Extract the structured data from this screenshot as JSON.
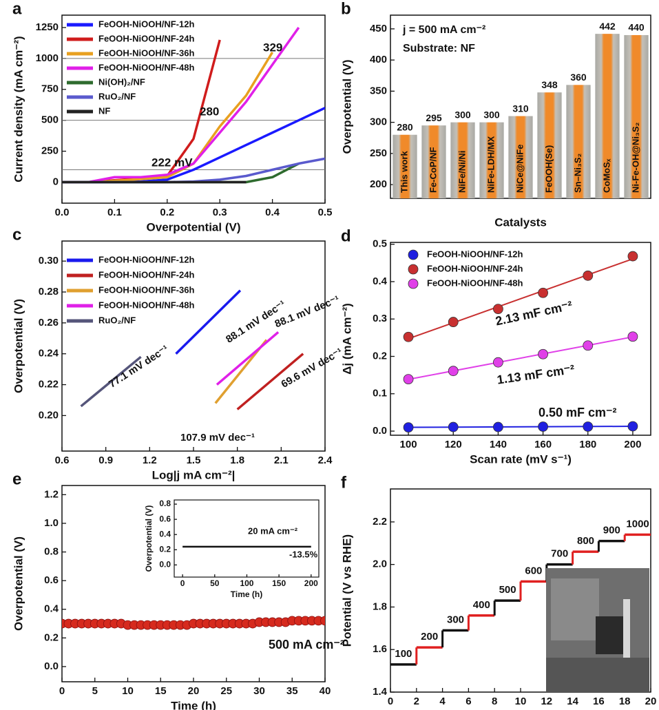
{
  "chart_data": [
    {
      "type": "line",
      "panel_label": "a",
      "xlabel": "Overpotential (V)",
      "ylabel": "Current density (mA cm⁻²)",
      "xlim": [
        0,
        0.5
      ],
      "ylim": [
        -170,
        1350
      ],
      "xticks": [
        {
          "value": 0,
          "label": "0.0"
        },
        0.1,
        0.2,
        0.3,
        0.4,
        0.5
      ],
      "yticks": [
        0,
        250,
        500,
        750,
        1000,
        1250
      ],
      "reference_lines": [
        100,
        500,
        1000
      ],
      "x": [
        0,
        0.05,
        0.1,
        0.15,
        0.2,
        0.25,
        0.3,
        0.35,
        0.4,
        0.45,
        0.5
      ],
      "series": [
        {
          "name": "FeOOH-NiOOH/NF-12h",
          "color": "#1a1aff",
          "values": [
            0,
            0,
            0,
            5,
            20,
            100,
            200,
            300,
            400,
            500,
            600
          ]
        },
        {
          "name": "FeOOH-NiOOH/NF-24h",
          "color": "#d01c1c",
          "values": [
            0,
            0,
            15,
            30,
            50,
            350,
            1150,
            null,
            null,
            null,
            null
          ]
        },
        {
          "name": "FeOOH-NiOOH/NF-36h",
          "color": "#e8a020",
          "values": [
            0,
            0,
            10,
            25,
            40,
            150,
            450,
            700,
            1050,
            null,
            null
          ]
        },
        {
          "name": "FeOOH-NiOOH/NF-48h",
          "color": "#e020e8",
          "values": [
            0,
            0,
            40,
            40,
            60,
            150,
            400,
            650,
            950,
            1250,
            null
          ]
        },
        {
          "name": "Ni(OH)₂/NF",
          "color": "#2e6b2e",
          "values": [
            0,
            0,
            0,
            0,
            0,
            0,
            0,
            0,
            40,
            150,
            null
          ]
        },
        {
          "name": "RuO₂/NF",
          "color": "#5a5acd",
          "values": [
            0,
            0,
            0,
            0,
            0,
            5,
            20,
            50,
            100,
            150,
            190
          ]
        },
        {
          "name": "NF",
          "color": "#222222",
          "values": [
            0,
            0,
            0,
            0,
            0,
            0,
            0,
            0,
            null,
            null,
            null
          ]
        }
      ],
      "annotations": [
        {
          "text": "222 mV",
          "color": "#c01818"
        },
        {
          "text": "280",
          "color": "#c01818"
        },
        {
          "text": "329",
          "color": "#c01818"
        }
      ]
    },
    {
      "type": "bar",
      "panel_label": "b",
      "xlabel": "Catalysts",
      "ylabel": "Overpotential (V)",
      "ylim": [
        178,
        472
      ],
      "yticks": [
        200,
        250,
        300,
        350,
        400,
        450
      ],
      "categories": [
        "This work",
        "Fe-CoP/NF",
        "NiFe/Ni/Ni",
        "NiFe-LDH/MX",
        "NiCe@NiFe",
        "FeOOH(Se)",
        "Sn–Ni₃S₂",
        "CoMoSₓ",
        "Ni-Fe-OH@Ni₃S₂"
      ],
      "values": [
        280,
        295,
        300,
        300,
        310,
        348,
        360,
        442,
        440
      ],
      "color": "#f08a2a",
      "annotations": [
        {
          "text": "j = 500 mA cm⁻²",
          "color": "#111111"
        },
        {
          "text": "Substrate: NF",
          "color": "#111111"
        }
      ]
    },
    {
      "type": "line",
      "panel_label": "c",
      "xlabel": "Log|j mA cm⁻²|",
      "ylabel": "Overpotential (V)",
      "xlim": [
        0.6,
        2.4
      ],
      "ylim": [
        0.177,
        0.313
      ],
      "xticks": [
        0.6,
        0.9,
        1.2,
        1.5,
        1.8,
        2.1,
        2.4
      ],
      "yticks": [
        {
          "value": 0.2,
          "label": "0.20"
        },
        0.22,
        0.24,
        0.26,
        0.28,
        {
          "value": 0.3,
          "label": "0.30"
        }
      ],
      "series": [
        {
          "name": "FeOOH-NiOOH/NF-12h",
          "color": "#1a1aee",
          "x": [
            1.38,
            1.82
          ],
          "values": [
            0.24,
            0.281
          ]
        },
        {
          "name": "FeOOH-NiOOH/NF-24h",
          "color": "#c02020",
          "x": [
            1.8,
            2.25
          ],
          "values": [
            0.204,
            0.24
          ]
        },
        {
          "name": "FeOOH-NiOOH/NF-36h",
          "color": "#e0a030",
          "x": [
            1.65,
            2.0
          ],
          "values": [
            0.208,
            0.249
          ]
        },
        {
          "name": "FeOOH-NiOOH/NF-48h",
          "color": "#e020e8",
          "x": [
            1.66,
            2.08
          ],
          "values": [
            0.22,
            0.254
          ]
        },
        {
          "name": "RuO₂/NF",
          "color": "#55557a",
          "x": [
            0.73,
            1.14
          ],
          "values": [
            0.206,
            0.238
          ]
        }
      ],
      "annotations": [
        {
          "text": "88.1 mV dec⁻¹",
          "color": "#1a1aee"
        },
        {
          "text": "88.1 mV dec⁻¹",
          "color": "#e020e8"
        },
        {
          "text": "69.6 mV dec⁻¹",
          "color": "#c02020"
        },
        {
          "text": "107.9 mV dec⁻¹",
          "color": "#d89020"
        },
        {
          "text": "77.1 mV dec⁻¹",
          "color": "#55557a"
        }
      ]
    },
    {
      "type": "scatter",
      "panel_label": "d",
      "xlabel": "Scan rate (mV s⁻¹)",
      "ylabel": "Δj (mA cm⁻²)",
      "xlim": [
        92,
        208
      ],
      "ylim": [
        -0.011,
        0.505
      ],
      "xticks": [
        100,
        120,
        140,
        160,
        180,
        200
      ],
      "yticks": [
        {
          "value": 0,
          "label": "0.0"
        },
        0.1,
        0.2,
        0.3,
        0.4,
        0.5
      ],
      "x": [
        100,
        120,
        140,
        160,
        180,
        200
      ],
      "series": [
        {
          "name": "FeOOH-NiOOH/NF-12h",
          "color": "#2020e0",
          "values": [
            0.01,
            0.011,
            0.011,
            0.012,
            0.012,
            0.013
          ]
        },
        {
          "name": "FeOOH-NiOOH/NF-24h",
          "color": "#c83030",
          "values": [
            0.252,
            0.292,
            0.327,
            0.37,
            0.416,
            0.468
          ]
        },
        {
          "name": "FeOOH-NiOOH/NF-48h",
          "color": "#e040e8",
          "values": [
            0.139,
            0.161,
            0.184,
            0.206,
            0.229,
            0.253
          ]
        }
      ],
      "annotations": [
        {
          "text": "2.13 mF cm⁻²",
          "color": "#b02020"
        },
        {
          "text": "1.13 mF cm⁻²",
          "color": "#d020d8"
        },
        {
          "text": "0.50 mF cm⁻²",
          "color": "#2020d0"
        }
      ]
    },
    {
      "type": "line",
      "panel_label": "e",
      "xlabel": "Time (h)",
      "ylabel": "Overpotential (V)",
      "markers": true,
      "xlim": [
        0,
        40
      ],
      "ylim": [
        -0.106,
        1.264
      ],
      "xticks": [
        0,
        5,
        10,
        15,
        20,
        25,
        30,
        35,
        40
      ],
      "yticks": [
        {
          "value": 0,
          "label": "0.0"
        },
        0.2,
        0.4,
        0.6,
        0.8,
        {
          "value": 1,
          "label": "1.0"
        },
        1.2
      ],
      "x": [
        0,
        1,
        2,
        3,
        4,
        5,
        6,
        7,
        8,
        9,
        10,
        11,
        12,
        13,
        14,
        15,
        16,
        17,
        18,
        19,
        20,
        21,
        22,
        23,
        24,
        25,
        26,
        27,
        28,
        29,
        30,
        31,
        32,
        33,
        34,
        35,
        36,
        37,
        38,
        39,
        40
      ],
      "series": [
        {
          "color": "#d62a1e",
          "values": [
            0.3,
            0.3,
            0.3,
            0.3,
            0.3,
            0.3,
            0.3,
            0.3,
            0.3,
            0.3,
            0.29,
            0.29,
            0.29,
            0.29,
            0.29,
            0.29,
            0.29,
            0.29,
            0.29,
            0.29,
            0.3,
            0.3,
            0.3,
            0.3,
            0.3,
            0.3,
            0.3,
            0.3,
            0.3,
            0.3,
            0.31,
            0.31,
            0.31,
            0.31,
            0.31,
            0.32,
            0.32,
            0.32,
            0.32,
            0.32,
            0.32
          ]
        }
      ],
      "annotations": [
        {
          "text": "500 mA cm⁻²",
          "color": "#c01818"
        }
      ]
    },
    {
      "type": "step",
      "panel_label": "f",
      "xlabel": "Time (h)",
      "ylabel": "Potential (V vs RHE)",
      "xlim": [
        0,
        20
      ],
      "ylim": [
        1.4,
        2.355
      ],
      "xticks": [
        0,
        2,
        4,
        6,
        8,
        10,
        12,
        14,
        16,
        18,
        20
      ],
      "yticks": [
        1.4,
        1.6,
        1.8,
        {
          "value": 2,
          "label": "2.0"
        },
        2.2
      ],
      "categories": [
        "100",
        "200",
        "300",
        "400",
        "500",
        "600",
        "700",
        "800",
        "900",
        "1000"
      ],
      "x": [
        0,
        2,
        4,
        6,
        8,
        10,
        12,
        14,
        16,
        18
      ],
      "values": [
        1.53,
        1.61,
        1.69,
        1.76,
        1.83,
        1.92,
        2.0,
        2.06,
        2.11,
        2.14
      ],
      "colors": [
        "#111111",
        "#e02020"
      ]
    },
    {
      "type": "line",
      "xlabel": "Time (h)",
      "ylabel": "Overpotential (V)",
      "xlim": [
        -13,
        212
      ],
      "ylim": [
        -0.16,
        0.855
      ],
      "xticks": [
        0,
        50,
        100,
        150,
        200
      ],
      "yticks": [
        {
          "value": 0,
          "label": "0.0"
        },
        0.2,
        0.4,
        0.6,
        0.8
      ],
      "x": [
        0,
        20,
        40,
        60,
        80,
        100,
        120,
        140,
        160,
        180,
        200
      ],
      "series": [
        {
          "color": "#111111",
          "values": [
            0.24,
            0.24,
            0.24,
            0.24,
            0.24,
            0.24,
            0.24,
            0.24,
            0.24,
            0.24,
            0.24
          ]
        }
      ],
      "annotations": [
        {
          "text": "20 mA cm⁻²",
          "color": "#c01818"
        },
        {
          "text": "-13.5%",
          "color": "#111111"
        }
      ]
    }
  ]
}
